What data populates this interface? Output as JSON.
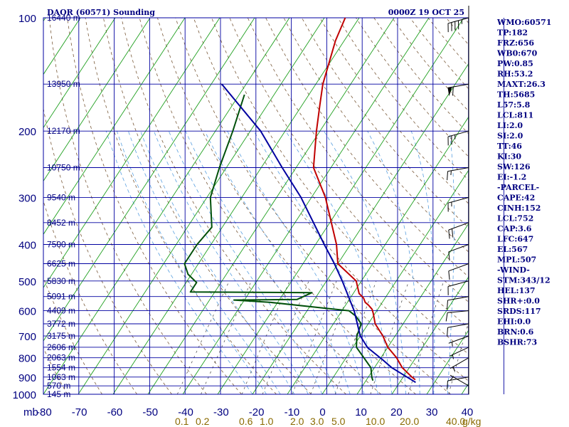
{
  "header": {
    "title": "DAOR (60571) Sounding",
    "time": "0000Z 19 OCT 25"
  },
  "chart_data": {
    "type": "skew-t",
    "pressure_axis_label": "mb",
    "pressure_levels": [
      100,
      200,
      300,
      400,
      500,
      600,
      700,
      800,
      900,
      1000
    ],
    "height_labels": [
      {
        "text": "16440 m",
        "p": 100
      },
      {
        "text": "13950 m",
        "p": 150
      },
      {
        "text": "12170 m",
        "p": 200
      },
      {
        "text": "10750 m",
        "p": 250
      },
      {
        "text": "9540 m",
        "p": 300
      },
      {
        "text": "8452 m",
        "p": 350
      },
      {
        "text": "7500 m",
        "p": 400
      },
      {
        "text": "6625 m",
        "p": 450
      },
      {
        "text": "5830 m",
        "p": 500
      },
      {
        "text": "5091 m",
        "p": 550
      },
      {
        "text": "4409 m",
        "p": 600
      },
      {
        "text": "3772 m",
        "p": 650
      },
      {
        "text": "3175 m",
        "p": 700
      },
      {
        "text": "2606 m",
        "p": 750
      },
      {
        "text": "2063 m",
        "p": 800
      },
      {
        "text": "1554 m",
        "p": 850
      },
      {
        "text": "1063 m",
        "p": 900
      },
      {
        "text": "570 m",
        "p": 950
      },
      {
        "text": "145 m",
        "p": 1000
      }
    ],
    "temperature_ticks": [
      -80,
      -70,
      -60,
      -50,
      -40,
      -30,
      -20,
      -10,
      0,
      10,
      20,
      30,
      40
    ],
    "temperature_labels": [
      "-80",
      "-70",
      "-60",
      "-50",
      "-40",
      "-30",
      "-20",
      "-10",
      "0",
      "10",
      "20",
      "30",
      "40"
    ],
    "mixing_ratio_labels": [
      "0.1",
      "0.2",
      "0.6",
      "1.0",
      "2.0",
      "3.0",
      "5.0",
      "10.0",
      "20.0",
      "40.0"
    ],
    "mixing_ratio_unit": "g/kg",
    "series": [
      {
        "name": "temperature",
        "color": "#c00000",
        "points": [
          [
            100,
            -64
          ],
          [
            115,
            -62.5
          ],
          [
            150,
            -58
          ],
          [
            170,
            -55
          ],
          [
            200,
            -51
          ],
          [
            250,
            -45
          ],
          [
            300,
            -36
          ],
          [
            400,
            -24
          ],
          [
            450,
            -20
          ],
          [
            500,
            -11.5
          ],
          [
            540,
            -8.3
          ],
          [
            555,
            -6.2
          ],
          [
            570,
            -4.9
          ],
          [
            580,
            -3.4
          ],
          [
            595,
            -1.6
          ],
          [
            610,
            -0.5
          ],
          [
            650,
            2
          ],
          [
            700,
            6.5
          ],
          [
            750,
            10
          ],
          [
            800,
            14.5
          ],
          [
            850,
            18
          ],
          [
            900,
            22.5
          ],
          [
            915,
            24
          ]
        ]
      },
      {
        "name": "dewpoint",
        "color": "#00500a",
        "points": [
          [
            160,
            -78.5
          ],
          [
            200,
            -75
          ],
          [
            250,
            -72
          ],
          [
            300,
            -69
          ],
          [
            360,
            -63
          ],
          [
            400,
            -64
          ],
          [
            450,
            -64
          ],
          [
            480,
            -61
          ],
          [
            505,
            -57
          ],
          [
            535,
            -57
          ],
          [
            537,
            -22
          ],
          [
            560,
            -25
          ],
          [
            562,
            -43
          ],
          [
            570,
            -32
          ],
          [
            590,
            -16
          ],
          [
            600,
            -8
          ],
          [
            620,
            -5
          ],
          [
            650,
            -2
          ],
          [
            700,
            -1
          ],
          [
            750,
            1
          ],
          [
            850,
            9
          ],
          [
            900,
            11
          ],
          [
            920,
            12
          ]
        ]
      },
      {
        "name": "parcel",
        "color": "#0000a0",
        "points": [
          [
            150,
            -87
          ],
          [
            200,
            -67
          ],
          [
            250,
            -54
          ],
          [
            300,
            -43
          ],
          [
            400,
            -27.5
          ],
          [
            450,
            -21
          ],
          [
            500,
            -15.5
          ],
          [
            600,
            -6.5
          ],
          [
            700,
            0
          ],
          [
            752,
            4.3
          ],
          [
            811,
            11
          ],
          [
            850,
            15
          ],
          [
            930,
            24.6
          ]
        ]
      }
    ],
    "wind_barbs": [
      {
        "p": 100,
        "dir": 255,
        "speed": 45
      },
      {
        "p": 150,
        "dir": 260,
        "speed": 60
      },
      {
        "p": 200,
        "dir": 255,
        "speed": 25
      },
      {
        "p": 250,
        "dir": 260,
        "speed": 15
      },
      {
        "p": 300,
        "dir": 255,
        "speed": 15
      },
      {
        "p": 350,
        "dir": 250,
        "speed": 20
      },
      {
        "p": 400,
        "dir": 250,
        "speed": 10
      },
      {
        "p": 450,
        "dir": 250,
        "speed": 10
      },
      {
        "p": 500,
        "dir": 255,
        "speed": 10
      },
      {
        "p": 550,
        "dir": 260,
        "speed": 10
      },
      {
        "p": 600,
        "dir": 265,
        "speed": 10
      },
      {
        "p": 650,
        "dir": 260,
        "speed": 10
      },
      {
        "p": 700,
        "dir": 250,
        "speed": 5
      },
      {
        "p": 750,
        "dir": 245,
        "speed": 5
      },
      {
        "p": 800,
        "dir": 240,
        "speed": 5
      },
      {
        "p": 900,
        "dir": 260,
        "speed": 10
      },
      {
        "p": 950,
        "dir": 300,
        "speed": 5
      }
    ]
  },
  "indices": [
    "WMO:60571",
    "TP:182",
    "FRZ:656",
    "WB0:670",
    "PW:0.85",
    "RH:53.2",
    "MAXT:26.3",
    "TH:5685",
    "L57:5.8",
    "LCL:811",
    "LI:2.0",
    "SI:2.0",
    "TT:46",
    "KI:30",
    "SW:126",
    "EI:-1.2",
    "-PARCEL-",
    "CAPE:42",
    "CINH:152",
    "LCL:752",
    "CAP:3.6",
    "LFC:647",
    "EL:567",
    "MPL:507",
    "-WIND-",
    "STM:343/12",
    "HEL:137",
    "SHR+:0.0",
    "SRDS:117",
    "EHI:0.0",
    "BRN:0.6",
    "BSHR:73"
  ]
}
